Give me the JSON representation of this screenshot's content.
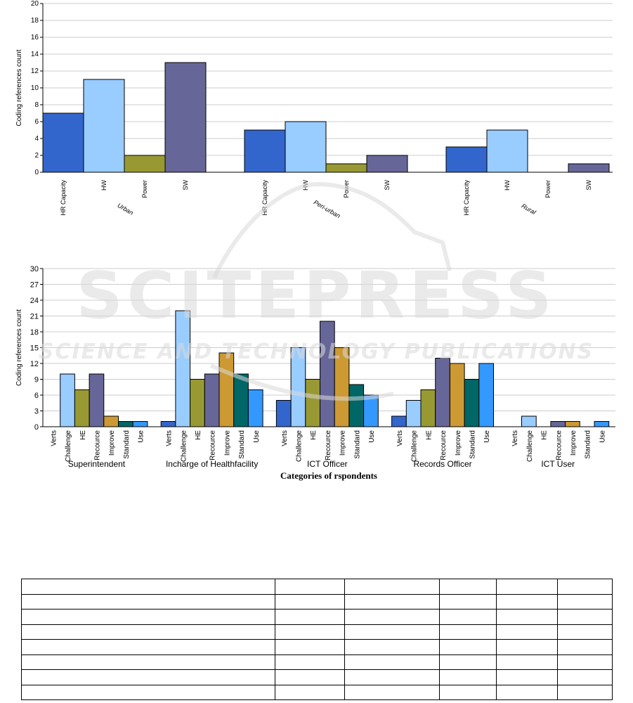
{
  "chart_data": [
    {
      "type": "bar",
      "ylabel": "Coding references count",
      "ylim": [
        0,
        20
      ],
      "yticks": [
        0,
        2,
        4,
        6,
        8,
        10,
        12,
        14,
        16,
        18,
        20
      ],
      "grid": true,
      "groups": [
        {
          "name": "Urban",
          "bars": [
            {
              "label": "HR Capacity",
              "value": 7,
              "color": "#3366cc"
            },
            {
              "label": "HW",
              "value": 11,
              "color": "#99ccff"
            },
            {
              "label": "Power",
              "value": 2,
              "color": "#999933"
            },
            {
              "label": "SW",
              "value": 13,
              "color": "#666699"
            }
          ]
        },
        {
          "name": "Peri-urban",
          "bars": [
            {
              "label": "HR Capacity",
              "value": 5,
              "color": "#3366cc"
            },
            {
              "label": "HW",
              "value": 6,
              "color": "#99ccff"
            },
            {
              "label": "Power",
              "value": 1,
              "color": "#999933"
            },
            {
              "label": "SW",
              "value": 2,
              "color": "#666699"
            }
          ]
        },
        {
          "name": "Rural",
          "bars": [
            {
              "label": "HR Capacity",
              "value": 3,
              "color": "#3366cc"
            },
            {
              "label": "HW",
              "value": 5,
              "color": "#99ccff"
            },
            {
              "label": "Power",
              "value": 0,
              "color": "#999933"
            },
            {
              "label": "SW",
              "value": 1,
              "color": "#666699"
            }
          ]
        }
      ]
    },
    {
      "type": "bar",
      "ylabel": "Coding references count",
      "xlabel": "Categories of rspondents",
      "ylim": [
        0,
        30
      ],
      "yticks": [
        0,
        3,
        6,
        9,
        12,
        15,
        18,
        21,
        24,
        27,
        30
      ],
      "grid": true,
      "categories": [
        "Verts",
        "Challenge",
        "HE",
        "Recource",
        "Improve",
        "Standard",
        "Use"
      ],
      "colors": [
        "#3366cc",
        "#99ccff",
        "#999933",
        "#666699",
        "#cc9933",
        "#006666",
        "#3399ff"
      ],
      "groups": [
        {
          "name": "Superintendent",
          "values": [
            0,
            10,
            7,
            10,
            2,
            1,
            1
          ]
        },
        {
          "name": "Incharge of Healthfacility",
          "values": [
            1,
            22,
            9,
            10,
            14,
            10,
            7
          ]
        },
        {
          "name": "ICT Officer",
          "values": [
            5,
            15,
            9,
            20,
            15,
            8,
            6
          ]
        },
        {
          "name": "Records Officer",
          "values": [
            2,
            5,
            7,
            13,
            12,
            9,
            12
          ]
        },
        {
          "name": "ICT User",
          "values": [
            0,
            2,
            0,
            1,
            1,
            0,
            1
          ]
        }
      ]
    }
  ],
  "watermark": {
    "line1": "SCITEPRESS",
    "line2": "SCIENCE AND TECHNOLOGY PUBLICATIONS"
  },
  "table": {
    "rows": 8,
    "cols": 6
  }
}
